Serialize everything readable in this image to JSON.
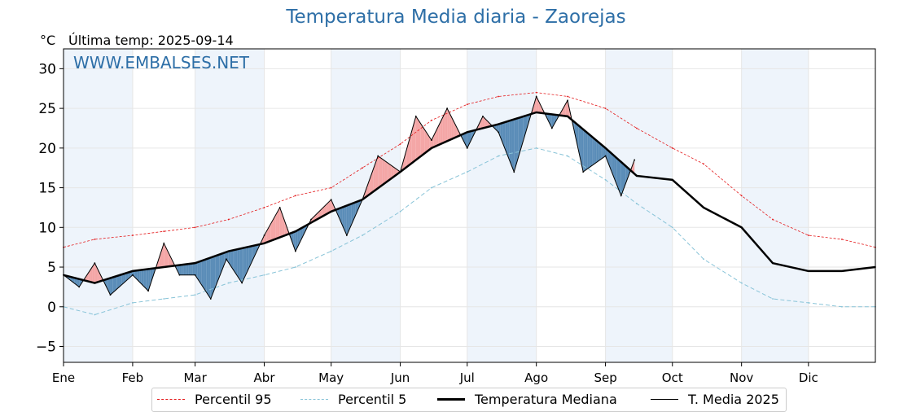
{
  "title": "Temperatura Media diaria - Zaorejas",
  "unit_label": "°C",
  "last_temp_label": "Última temp: 2025-09-14",
  "watermark": "WWW.EMBALSES.NET",
  "colors": {
    "title": "#2e6fa7",
    "p95": "#e41a1c",
    "p5": "#89c4d8",
    "median": "#000000",
    "year": "#000000",
    "above_fill": "#f4a6a6",
    "below_fill": "#5b8db8",
    "band": "#eef4fb"
  },
  "chart_data": {
    "type": "line",
    "title": "Temperatura Media diaria - Zaorejas",
    "ylabel": "°C",
    "ylim": [
      -7,
      32.5
    ],
    "yticks": [
      -5,
      0,
      5,
      10,
      15,
      20,
      25,
      30
    ],
    "xticks": [
      "Ene",
      "Feb",
      "Mar",
      "Abr",
      "May",
      "Jun",
      "Jul",
      "Ago",
      "Sep",
      "Oct",
      "Nov",
      "Dic"
    ],
    "grid": true,
    "legend_position": "bottom-center",
    "series": [
      {
        "name": "Percentil 95",
        "x": [
          1,
          15,
          32,
          46,
          60,
          75,
          91,
          105,
          121,
          135,
          152,
          166,
          182,
          196,
          213,
          227,
          244,
          258,
          274,
          288,
          305,
          319,
          335,
          350,
          365
        ],
        "values": [
          7.5,
          8.5,
          9,
          9.5,
          10,
          11,
          12.5,
          14,
          15,
          17.5,
          20.5,
          23.5,
          25.5,
          26.5,
          27,
          26.5,
          25,
          22.5,
          20,
          18,
          14,
          11,
          9,
          8.5,
          7.5
        ]
      },
      {
        "name": "Percentil 5",
        "x": [
          1,
          15,
          32,
          46,
          60,
          75,
          91,
          105,
          121,
          135,
          152,
          166,
          182,
          196,
          213,
          227,
          244,
          258,
          274,
          288,
          305,
          319,
          335,
          350,
          365
        ],
        "values": [
          0,
          -1,
          0.5,
          1,
          1.5,
          3,
          4,
          5,
          7,
          9,
          12,
          15,
          17,
          19,
          20,
          19,
          16,
          13,
          10,
          6,
          3,
          1,
          0.5,
          0,
          0
        ]
      },
      {
        "name": "Temperatura Mediana",
        "x": [
          1,
          15,
          32,
          46,
          60,
          75,
          91,
          105,
          121,
          135,
          152,
          166,
          182,
          196,
          213,
          227,
          244,
          258,
          274,
          288,
          305,
          319,
          335,
          350,
          365
        ],
        "values": [
          4,
          3,
          4.5,
          5,
          5.5,
          7,
          8,
          9.5,
          12,
          13.5,
          17,
          20,
          22,
          23,
          24.5,
          24,
          20,
          16.5,
          16,
          12.5,
          10,
          5.5,
          4.5,
          4.5,
          5
        ]
      },
      {
        "name": "T. Media 2025",
        "x": [
          1,
          8,
          15,
          22,
          32,
          39,
          46,
          53,
          60,
          67,
          74,
          81,
          91,
          98,
          105,
          112,
          121,
          128,
          135,
          142,
          152,
          159,
          166,
          173,
          182,
          189,
          196,
          203,
          213,
          220,
          227,
          234,
          244,
          251,
          257
        ],
        "values": [
          4,
          2.5,
          5.5,
          1.5,
          4,
          2,
          8,
          4,
          4,
          1,
          6,
          3,
          9,
          12.5,
          7,
          11,
          13.5,
          9,
          13.5,
          19,
          17,
          24,
          21,
          25,
          20,
          24,
          22,
          17,
          26.5,
          22.5,
          26,
          17,
          19,
          14,
          18.5
        ]
      }
    ]
  },
  "legend": [
    {
      "label": "Percentil 95"
    },
    {
      "label": "Percentil 5"
    },
    {
      "label": "Temperatura Mediana"
    },
    {
      "label": "T. Media 2025"
    }
  ]
}
